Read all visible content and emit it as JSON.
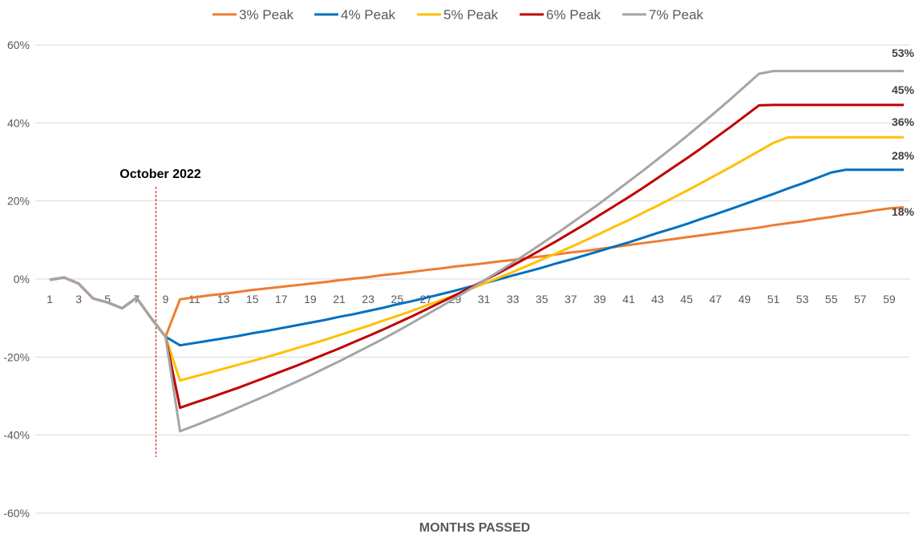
{
  "chart_data": {
    "type": "line",
    "xlabel": "MONTHS PASSED",
    "ylabel": "",
    "ylim": [
      -60,
      60
    ],
    "yticks": [
      -60,
      -40,
      -20,
      0,
      20,
      40,
      60
    ],
    "ytick_labels": [
      "-60%",
      "-40%",
      "-20%",
      "0%",
      "20%",
      "40%",
      "60%"
    ],
    "xlim": [
      1,
      60
    ],
    "xticks": [
      1,
      3,
      5,
      7,
      9,
      11,
      13,
      15,
      17,
      19,
      21,
      23,
      25,
      27,
      29,
      31,
      33,
      35,
      37,
      39,
      41,
      43,
      45,
      47,
      49,
      51,
      53,
      55,
      57,
      59
    ],
    "grid": true,
    "legend_position": "top",
    "annotation": {
      "label": "October 2022",
      "x": 9
    },
    "x": [
      1,
      2,
      3,
      4,
      5,
      6,
      7,
      8,
      9,
      10,
      11,
      12,
      13,
      14,
      15,
      16,
      17,
      18,
      19,
      20,
      21,
      22,
      23,
      24,
      25,
      26,
      27,
      28,
      29,
      30,
      31,
      32,
      33,
      34,
      35,
      36,
      37,
      38,
      39,
      40,
      41,
      42,
      43,
      44,
      45,
      46,
      47,
      48,
      49,
      50,
      51,
      52,
      53,
      54,
      55,
      56,
      57,
      58,
      59,
      60
    ],
    "series": [
      {
        "name": "3% Peak",
        "color": "#ED7D31",
        "end_label": "18%",
        "values": [
          -0.2,
          0.4,
          -1.2,
          -5.0,
          -6.0,
          -7.5,
          -4.8,
          -10.0,
          -14.8,
          -5.2,
          -4.7,
          -4.2,
          -3.8,
          -3.3,
          -2.8,
          -2.4,
          -2.0,
          -1.6,
          -1.2,
          -0.8,
          -0.3,
          0.1,
          0.5,
          1.0,
          1.4,
          1.8,
          2.3,
          2.7,
          3.2,
          3.6,
          4.0,
          4.5,
          4.9,
          5.4,
          5.8,
          6.3,
          6.8,
          7.2,
          7.7,
          8.2,
          8.7,
          9.2,
          9.7,
          10.2,
          10.7,
          11.2,
          11.7,
          12.2,
          12.7,
          13.2,
          13.8,
          14.3,
          14.8,
          15.4,
          15.9,
          16.5,
          17.0,
          17.6,
          18.1,
          18.4
        ]
      },
      {
        "name": "4% Peak",
        "color": "#0070C0",
        "end_label": "28%",
        "values": [
          -0.2,
          0.4,
          -1.2,
          -5.0,
          -6.0,
          -7.5,
          -4.8,
          -10.0,
          -14.8,
          -17.0,
          -16.4,
          -15.8,
          -15.2,
          -14.6,
          -13.9,
          -13.3,
          -12.6,
          -11.9,
          -11.2,
          -10.5,
          -9.7,
          -9.0,
          -8.2,
          -7.4,
          -6.5,
          -5.7,
          -4.8,
          -3.9,
          -3.0,
          -2.0,
          -1.1,
          -0.1,
          0.9,
          1.9,
          2.9,
          4.0,
          5.0,
          6.1,
          7.2,
          8.3,
          9.4,
          10.6,
          11.8,
          12.9,
          14.1,
          15.4,
          16.6,
          17.9,
          19.2,
          20.5,
          21.8,
          23.2,
          24.5,
          25.9,
          27.3,
          28.0,
          28.0,
          28.0,
          28.0,
          28.0
        ]
      },
      {
        "name": "5% Peak",
        "color": "#FFC000",
        "end_label": "36%",
        "values": [
          -0.2,
          0.4,
          -1.2,
          -5.0,
          -6.0,
          -7.5,
          -4.8,
          -10.0,
          -14.8,
          -26.0,
          -25.0,
          -24.0,
          -23.0,
          -22.0,
          -21.0,
          -20.0,
          -18.9,
          -17.8,
          -16.7,
          -15.6,
          -14.4,
          -13.2,
          -12.0,
          -10.7,
          -9.5,
          -8.2,
          -6.8,
          -5.5,
          -4.1,
          -2.6,
          -1.2,
          0.3,
          1.8,
          3.4,
          5.0,
          6.6,
          8.2,
          9.9,
          11.6,
          13.4,
          15.1,
          17.0,
          18.8,
          20.7,
          22.6,
          24.6,
          26.6,
          28.6,
          30.7,
          32.8,
          34.9,
          36.3,
          36.3,
          36.3,
          36.3,
          36.3,
          36.3,
          36.3,
          36.3,
          36.3
        ]
      },
      {
        "name": "6% Peak",
        "color": "#C00000",
        "end_label": "45%",
        "values": [
          -0.2,
          0.4,
          -1.2,
          -5.0,
          -6.0,
          -7.5,
          -4.8,
          -10.0,
          -14.8,
          -33.0,
          -31.7,
          -30.5,
          -29.2,
          -27.9,
          -26.5,
          -25.1,
          -23.7,
          -22.3,
          -20.8,
          -19.3,
          -17.8,
          -16.2,
          -14.6,
          -13.0,
          -11.3,
          -9.6,
          -7.8,
          -6.0,
          -4.2,
          -2.3,
          -0.4,
          1.5,
          3.5,
          5.5,
          7.6,
          9.7,
          11.9,
          14.1,
          16.4,
          18.7,
          21.0,
          23.4,
          25.9,
          28.4,
          30.9,
          33.5,
          36.2,
          38.9,
          41.7,
          44.5,
          44.6,
          44.6,
          44.6,
          44.6,
          44.6,
          44.6,
          44.6,
          44.6,
          44.6,
          44.6
        ]
      },
      {
        "name": "7% Peak",
        "color": "#A5A5A5",
        "end_label": "53%",
        "values": [
          -0.2,
          0.4,
          -1.2,
          -5.0,
          -6.0,
          -7.5,
          -4.8,
          -10.0,
          -14.8,
          -39.0,
          -37.6,
          -36.1,
          -34.6,
          -33.0,
          -31.4,
          -29.8,
          -28.1,
          -26.4,
          -24.7,
          -22.9,
          -21.1,
          -19.2,
          -17.3,
          -15.4,
          -13.4,
          -11.3,
          -9.2,
          -7.1,
          -4.9,
          -2.7,
          -0.4,
          1.9,
          4.2,
          6.6,
          9.1,
          11.6,
          14.2,
          16.8,
          19.4,
          22.2,
          25.0,
          27.8,
          30.7,
          33.6,
          36.6,
          39.7,
          42.8,
          46.0,
          49.3,
          52.6,
          53.3,
          53.3,
          53.3,
          53.3,
          53.3,
          53.3,
          53.3,
          53.3,
          53.3,
          53.3
        ]
      }
    ]
  }
}
